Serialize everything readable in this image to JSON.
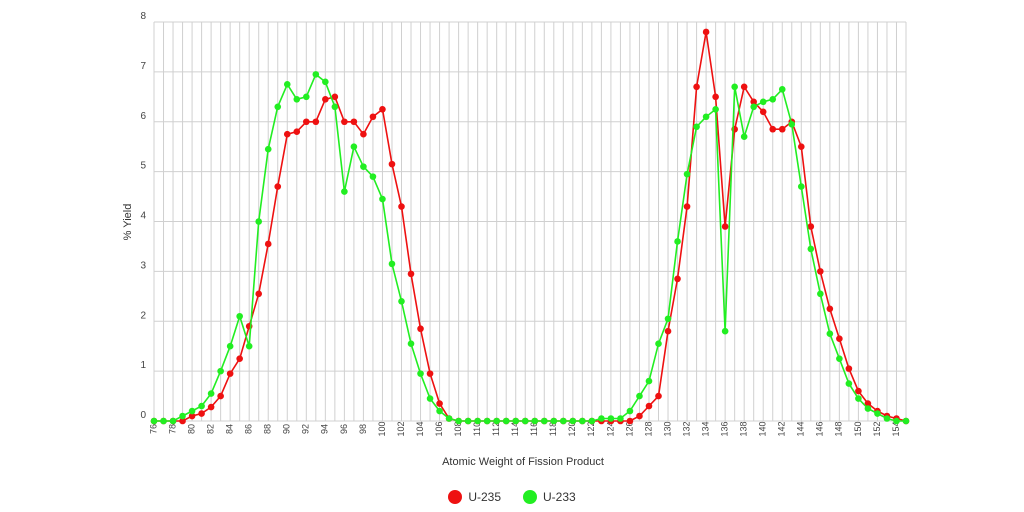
{
  "chart_data": {
    "type": "line",
    "title": "",
    "xlabel": "Atomic Weight of Fission Product",
    "ylabel": "% Yield",
    "xlim": [
      76,
      155
    ],
    "ylim": [
      0,
      8
    ],
    "yticks": [
      0,
      1,
      2,
      3,
      4,
      5,
      6,
      7,
      8
    ],
    "xticks": [
      76,
      78,
      80,
      82,
      84,
      86,
      88,
      90,
      92,
      94,
      96,
      98,
      100,
      102,
      104,
      106,
      108,
      110,
      112,
      114,
      116,
      118,
      120,
      122,
      124,
      126,
      128,
      130,
      132,
      134,
      136,
      138,
      140,
      142,
      144,
      146,
      148,
      150,
      152,
      154
    ],
    "grid": true,
    "legend_position": "bottom-center",
    "x": [
      76,
      77,
      78,
      79,
      80,
      81,
      82,
      83,
      84,
      85,
      86,
      87,
      88,
      89,
      90,
      91,
      92,
      93,
      94,
      95,
      96,
      97,
      98,
      99,
      100,
      101,
      102,
      103,
      104,
      105,
      106,
      107,
      108,
      109,
      110,
      111,
      112,
      113,
      114,
      115,
      116,
      117,
      118,
      119,
      120,
      121,
      122,
      123,
      124,
      125,
      126,
      127,
      128,
      129,
      130,
      131,
      132,
      133,
      134,
      135,
      136,
      137,
      138,
      139,
      140,
      141,
      142,
      143,
      144,
      145,
      146,
      147,
      148,
      149,
      150,
      151,
      152,
      153,
      154,
      155
    ],
    "series": [
      {
        "name": "U-235",
        "color": "#ee1111",
        "values": [
          0,
          0,
          0,
          0,
          0.1,
          0.15,
          0.28,
          0.5,
          0.95,
          1.25,
          1.9,
          2.55,
          3.55,
          4.7,
          5.75,
          5.8,
          6.0,
          6.0,
          6.45,
          6.5,
          6.0,
          6.0,
          5.75,
          6.1,
          6.25,
          5.15,
          4.3,
          2.95,
          1.85,
          0.95,
          0.35,
          0.05,
          0,
          0,
          0,
          0,
          0,
          0,
          0,
          0,
          0,
          0,
          0,
          0,
          0,
          0,
          0,
          0,
          0,
          0,
          0,
          0.1,
          0.3,
          0.5,
          1.8,
          2.85,
          4.3,
          6.7,
          7.8,
          6.5,
          3.9,
          5.85,
          6.7,
          6.4,
          6.2,
          5.85,
          5.85,
          6.0,
          5.5,
          3.9,
          3.0,
          2.25,
          1.65,
          1.05,
          0.6,
          0.35,
          0.2,
          0.1,
          0.05,
          0
        ]
      },
      {
        "name": "U-233",
        "color": "#22ee22",
        "values": [
          0,
          0,
          0,
          0.1,
          0.2,
          0.3,
          0.55,
          1.0,
          1.5,
          2.1,
          1.5,
          4.0,
          5.45,
          6.3,
          6.75,
          6.45,
          6.5,
          6.95,
          6.8,
          6.3,
          4.6,
          5.5,
          5.1,
          4.9,
          4.45,
          3.15,
          2.4,
          1.55,
          0.95,
          0.45,
          0.2,
          0.05,
          0,
          0,
          0,
          0,
          0,
          0,
          0,
          0,
          0,
          0,
          0,
          0,
          0,
          0,
          0,
          0.05,
          0.05,
          0.05,
          0.2,
          0.5,
          0.8,
          1.55,
          2.05,
          3.6,
          4.95,
          5.9,
          6.1,
          6.25,
          1.8,
          6.7,
          5.7,
          6.3,
          6.4,
          6.45,
          6.65,
          5.95,
          4.7,
          3.45,
          2.55,
          1.75,
          1.25,
          0.75,
          0.45,
          0.25,
          0.15,
          0.05,
          0,
          0
        ]
      }
    ]
  }
}
